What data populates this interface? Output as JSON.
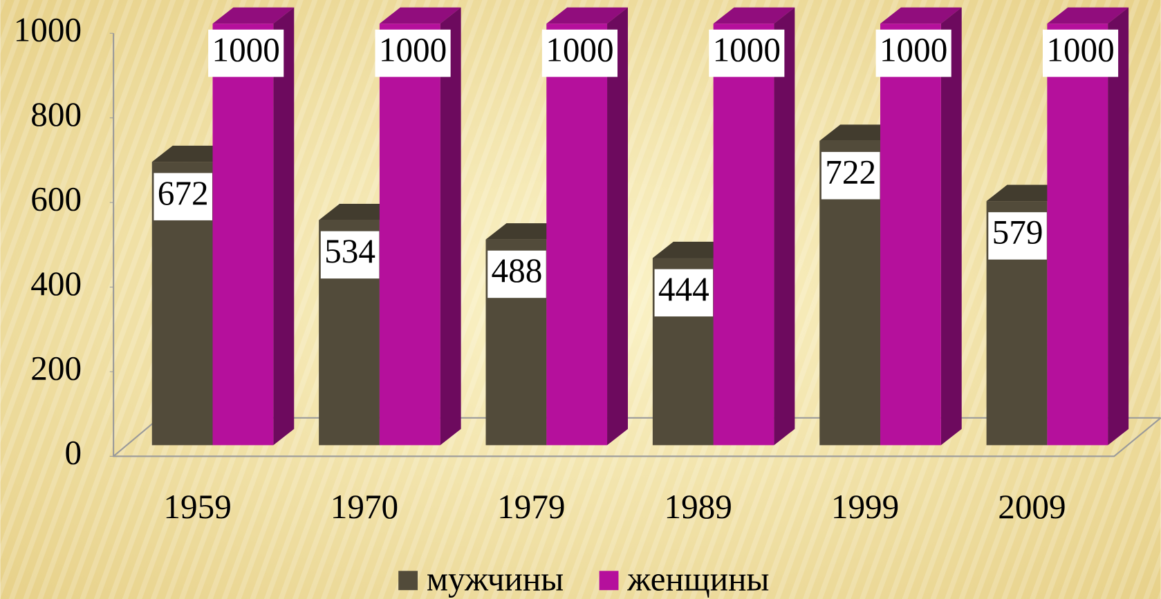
{
  "chart_data": {
    "type": "bar3d",
    "categories": [
      "1959",
      "1970",
      "1979",
      "1989",
      "1999",
      "2009"
    ],
    "series": [
      {
        "name": "мужчины",
        "color": "#524b3a",
        "values": [
          672,
          534,
          488,
          444,
          722,
          579
        ]
      },
      {
        "name": "женщины",
        "color": "#b5109c",
        "values": [
          1000,
          1000,
          1000,
          1000,
          1000,
          1000
        ]
      }
    ],
    "ylim": [
      0,
      1000
    ],
    "yticks": [
      0,
      200,
      400,
      600,
      800,
      1000
    ],
    "legend": "bottom"
  }
}
